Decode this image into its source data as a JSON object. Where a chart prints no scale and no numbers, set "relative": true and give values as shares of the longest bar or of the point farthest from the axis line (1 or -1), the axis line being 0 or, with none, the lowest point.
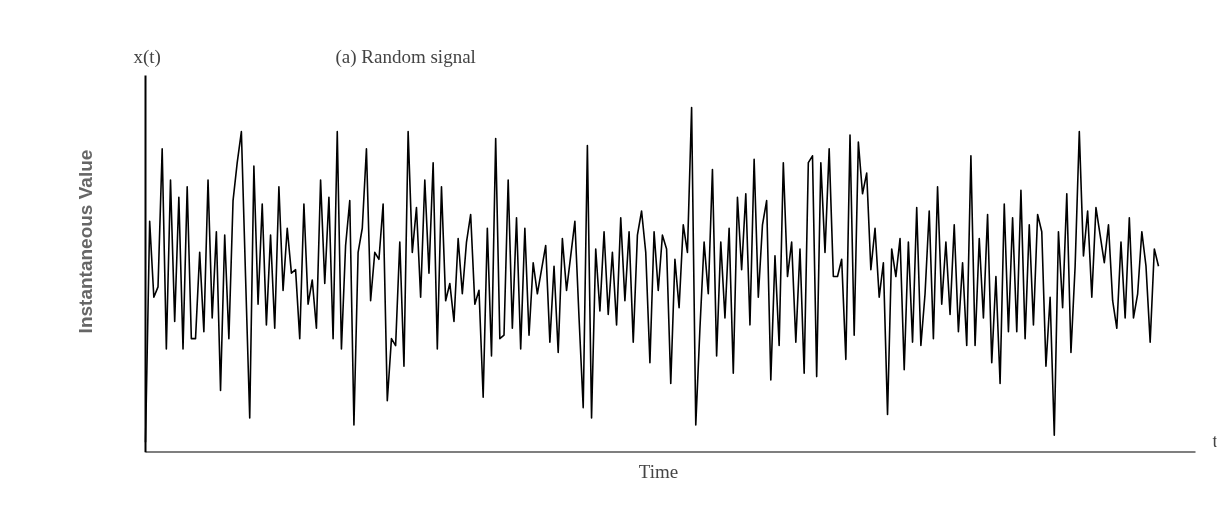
{
  "chart_data": {
    "type": "line",
    "relative": true,
    "title": "(a)  Random signal",
    "xlabel": "Time",
    "ylabel": "Instantaneous Value",
    "annotations": [
      "x(t)",
      "t"
    ],
    "categories": [
      null,
      null,
      null,
      null,
      null,
      null,
      null,
      null,
      null,
      null,
      null,
      null,
      null,
      null,
      null,
      null,
      null,
      null,
      null,
      null,
      null,
      null,
      null,
      null,
      null,
      null,
      null,
      null,
      null,
      null,
      null,
      null,
      null,
      null,
      null,
      null,
      null,
      null,
      null,
      null,
      null,
      null,
      null,
      null,
      null,
      null,
      null,
      null,
      null,
      null,
      null,
      null,
      null,
      null,
      null,
      null,
      null,
      null,
      null,
      null,
      null,
      null,
      null,
      null,
      null,
      null,
      null,
      null,
      null,
      null,
      null,
      null,
      null,
      null,
      null,
      null,
      null,
      null,
      null,
      null,
      null,
      null,
      null,
      null,
      null,
      null,
      null,
      null,
      null,
      null,
      null,
      null,
      null,
      null,
      null,
      null,
      null,
      null,
      null,
      null,
      null,
      null,
      null,
      null,
      null,
      null,
      null,
      null,
      null,
      null,
      null,
      null,
      null,
      null,
      null,
      null,
      null,
      null,
      null,
      null,
      null,
      null,
      null,
      null,
      null,
      null,
      null,
      null,
      null,
      null,
      null,
      null,
      null,
      null,
      null,
      null,
      null,
      null,
      null,
      null,
      null,
      null,
      null,
      null,
      null,
      null,
      null,
      null,
      null,
      null,
      null,
      null,
      null,
      null,
      null,
      null,
      null,
      null,
      null,
      null,
      null,
      null,
      null,
      null,
      null,
      null,
      null,
      null,
      null,
      null,
      null,
      null,
      null,
      null,
      null,
      null,
      null,
      null,
      null,
      null,
      null,
      null,
      null,
      null,
      null,
      null,
      null,
      null,
      null,
      null,
      null,
      null,
      null,
      null,
      null,
      null,
      null,
      null,
      null,
      null,
      null,
      null,
      null,
      null,
      null,
      null,
      null,
      null,
      null,
      null,
      null,
      null,
      null,
      null,
      null,
      null,
      null,
      null,
      null,
      null,
      null,
      null,
      null,
      null,
      null,
      null,
      null,
      null,
      null,
      null,
      null,
      null,
      null,
      null,
      null,
      null,
      null,
      null,
      null,
      null,
      null,
      null,
      null,
      null
    ],
    "series": [
      {
        "color": "#000000",
        "values": [
          0.03,
          0.67,
          0.45,
          0.48,
          0.88,
          0.3,
          0.79,
          0.38,
          0.74,
          0.3,
          0.77,
          0.33,
          0.33,
          0.58,
          0.35,
          0.79,
          0.39,
          0.64,
          0.18,
          0.63,
          0.33,
          0.73,
          0.84,
          0.93,
          0.51,
          0.1,
          0.83,
          0.43,
          0.72,
          0.37,
          0.63,
          0.36,
          0.77,
          0.47,
          0.65,
          0.52,
          0.53,
          0.33,
          0.72,
          0.43,
          0.5,
          0.36,
          0.79,
          0.49,
          0.74,
          0.33,
          0.93,
          0.3,
          0.6,
          0.73,
          0.08,
          0.58,
          0.65,
          0.88,
          0.44,
          0.58,
          0.56,
          0.72,
          0.15,
          0.33,
          0.31,
          0.61,
          0.25,
          0.93,
          0.58,
          0.71,
          0.45,
          0.79,
          0.52,
          0.84,
          0.3,
          0.77,
          0.44,
          0.49,
          0.38,
          0.62,
          0.46,
          0.61,
          0.69,
          0.43,
          0.47,
          0.16,
          0.65,
          0.28,
          0.91,
          0.33,
          0.34,
          0.79,
          0.36,
          0.68,
          0.3,
          0.65,
          0.34,
          0.55,
          0.46,
          0.53,
          0.6,
          0.32,
          0.54,
          0.29,
          0.62,
          0.47,
          0.57,
          0.67,
          0.39,
          0.13,
          0.89,
          0.1,
          0.59,
          0.41,
          0.64,
          0.4,
          0.58,
          0.37,
          0.68,
          0.44,
          0.64,
          0.32,
          0.63,
          0.7,
          0.58,
          0.26,
          0.64,
          0.47,
          0.63,
          0.59,
          0.2,
          0.56,
          0.42,
          0.66,
          0.58,
          1.0,
          0.08,
          0.36,
          0.61,
          0.46,
          0.82,
          0.28,
          0.61,
          0.39,
          0.65,
          0.23,
          0.74,
          0.53,
          0.75,
          0.37,
          0.85,
          0.45,
          0.66,
          0.73,
          0.21,
          0.57,
          0.31,
          0.84,
          0.51,
          0.61,
          0.32,
          0.59,
          0.23,
          0.84,
          0.86,
          0.22,
          0.84,
          0.58,
          0.88,
          0.51,
          0.51,
          0.56,
          0.27,
          0.92,
          0.34,
          0.9,
          0.75,
          0.81,
          0.53,
          0.65,
          0.45,
          0.55,
          0.11,
          0.59,
          0.51,
          0.62,
          0.24,
          0.61,
          0.32,
          0.71,
          0.31,
          0.46,
          0.7,
          0.33,
          0.77,
          0.43,
          0.61,
          0.4,
          0.66,
          0.35,
          0.55,
          0.31,
          0.86,
          0.31,
          0.62,
          0.39,
          0.69,
          0.26,
          0.51,
          0.2,
          0.72,
          0.35,
          0.68,
          0.35,
          0.76,
          0.33,
          0.66,
          0.37,
          0.69,
          0.64,
          0.25,
          0.45,
          0.05,
          0.64,
          0.42,
          0.75,
          0.29,
          0.54,
          0.93,
          0.57,
          0.7,
          0.45,
          0.71,
          0.63,
          0.55,
          0.66,
          0.44,
          0.36,
          0.61,
          0.39,
          0.68,
          0.39,
          0.46,
          0.64,
          0.54,
          0.32,
          0.59,
          0.54
        ]
      }
    ]
  }
}
